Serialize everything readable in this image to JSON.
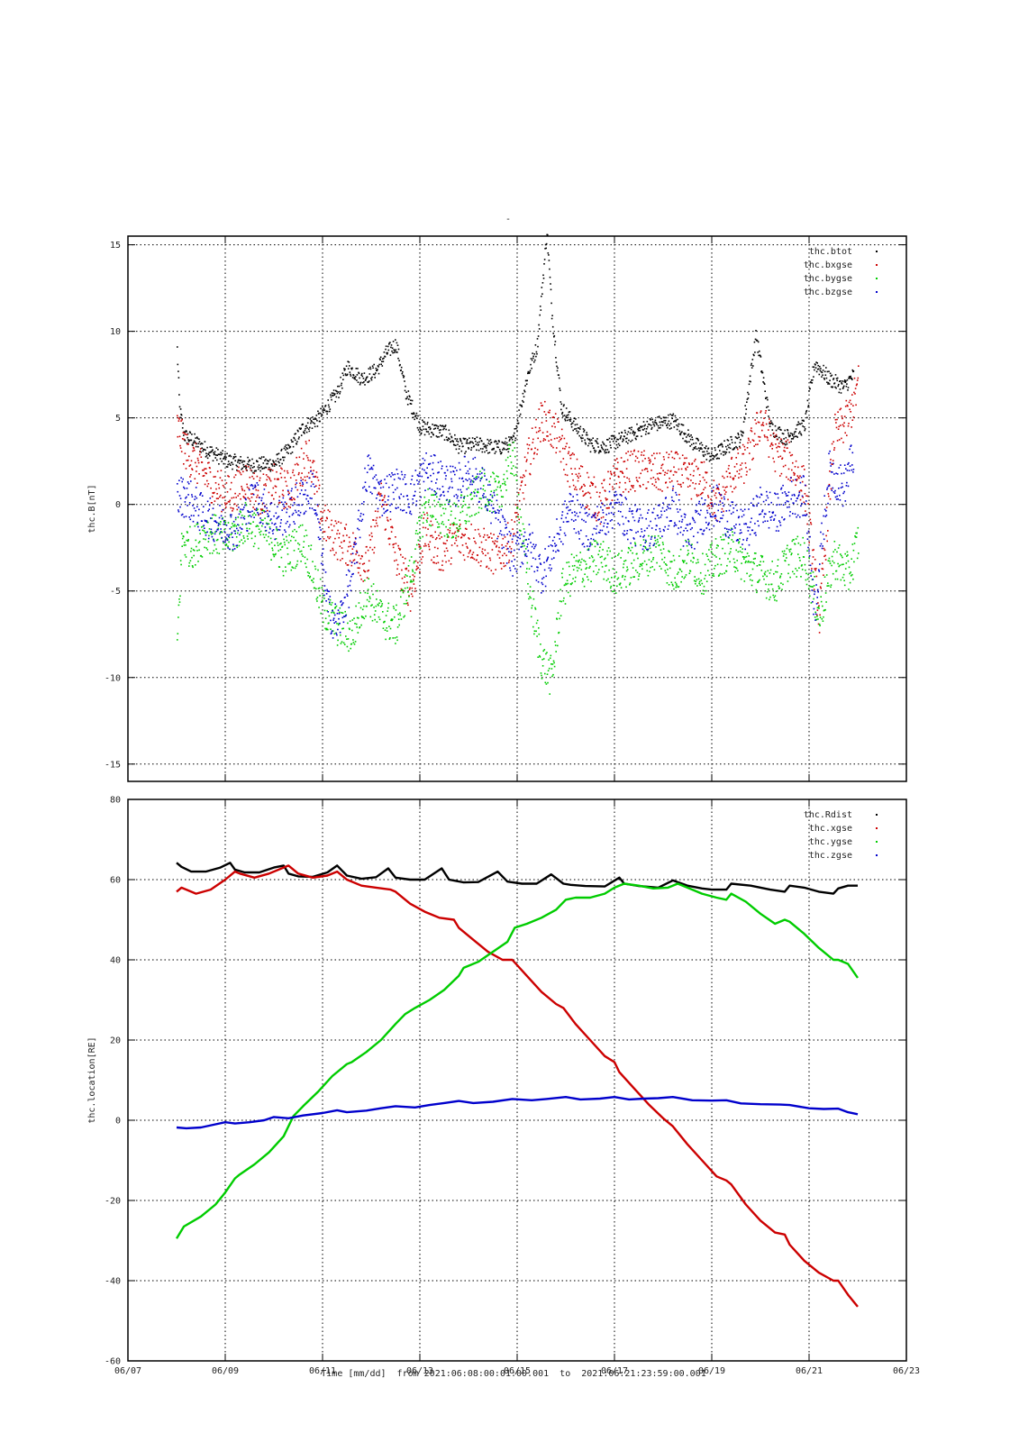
{
  "figure_title": "-",
  "x_axis": {
    "title": "Time [mm/dd]  from 2021:06:08:00:01:00.001  to  2021:06:21:23:59:00.001",
    "tick_labels": [
      "06/07",
      "06/09",
      "06/11",
      "06/13",
      "06/15",
      "06/17",
      "06/19",
      "06/21",
      "06/23"
    ],
    "tick_days": [
      7,
      9,
      11,
      13,
      15,
      17,
      19,
      21,
      23
    ],
    "range_days": [
      7,
      23
    ]
  },
  "chart_data": [
    {
      "type": "scatter",
      "ylabel": "thc.B[nT]",
      "ylim": [
        -16,
        15.5
      ],
      "yticks": [
        15,
        10,
        5,
        0,
        -5,
        -10,
        -15
      ],
      "legend_position": "top-right",
      "grid": true,
      "series": [
        {
          "name": "thc.btot",
          "color": "#000000",
          "x": [
            8.0,
            8.05,
            8.15,
            8.3,
            8.6,
            9.0,
            9.5,
            10.0,
            10.3,
            10.6,
            10.9,
            11.3,
            11.5,
            11.8,
            12.1,
            12.3,
            12.5,
            12.7,
            13.0,
            13.5,
            13.8,
            14.2,
            14.6,
            14.9,
            15.2,
            15.4,
            15.6,
            15.7,
            15.9,
            16.2,
            16.5,
            16.8,
            17.2,
            17.7,
            18.2,
            18.6,
            19.0,
            19.3,
            19.6,
            19.9,
            20.2,
            20.5,
            20.9,
            21.1,
            21.4,
            21.7,
            21.9
          ],
          "y": [
            9.0,
            5.5,
            4.0,
            3.8,
            3.2,
            2.6,
            2.3,
            2.4,
            3.2,
            4.5,
            5.0,
            6.5,
            8.0,
            7.3,
            7.8,
            8.8,
            9.3,
            6.5,
            4.5,
            4.2,
            3.4,
            3.5,
            3.3,
            3.6,
            7.5,
            9.2,
            15.8,
            11.2,
            5.6,
            4.5,
            3.5,
            3.4,
            3.9,
            4.6,
            4.9,
            3.6,
            2.8,
            3.4,
            3.9,
            9.8,
            4.5,
            3.9,
            4.6,
            8.2,
            7.3,
            6.8,
            7.5
          ]
        },
        {
          "name": "thc.bxgse",
          "color": "#cc0000",
          "x": [
            8.0,
            8.2,
            8.5,
            8.8,
            9.1,
            9.4,
            9.7,
            10.0,
            10.3,
            10.7,
            11.0,
            11.3,
            11.6,
            11.9,
            12.2,
            12.5,
            12.8,
            13.1,
            13.4,
            13.7,
            14.0,
            14.3,
            14.6,
            14.9,
            15.2,
            15.5,
            15.8,
            16.1,
            16.4,
            16.7,
            17.0,
            17.3,
            17.6,
            17.9,
            18.2,
            18.5,
            18.8,
            19.1,
            19.4,
            19.7,
            20.0,
            20.3,
            20.6,
            20.9,
            21.2,
            21.5,
            21.8,
            22.0
          ],
          "y": [
            4.5,
            3.0,
            2.0,
            1.0,
            0.5,
            1.5,
            0.5,
            1.2,
            0.8,
            3.0,
            -1.0,
            -2.0,
            -2.5,
            -3.5,
            0.5,
            -3.0,
            -5.0,
            -1.5,
            -2.8,
            -2.0,
            -2.0,
            -2.5,
            -3.0,
            -1.8,
            2.5,
            5.0,
            4.0,
            2.0,
            1.0,
            0.0,
            1.5,
            2.0,
            2.0,
            1.8,
            2.0,
            1.5,
            1.5,
            0.0,
            1.8,
            2.5,
            5.0,
            3.0,
            2.5,
            1.0,
            -6.5,
            4.0,
            5.0,
            7.0
          ]
        },
        {
          "name": "thc.bygse",
          "color": "#00cc00",
          "x": [
            8.0,
            8.1,
            8.3,
            8.6,
            9.0,
            9.4,
            9.8,
            10.2,
            10.6,
            11.0,
            11.3,
            11.6,
            11.9,
            12.2,
            12.5,
            12.8,
            13.1,
            13.4,
            13.7,
            14.0,
            14.3,
            14.6,
            14.9,
            15.1,
            15.3,
            15.5,
            15.7,
            15.9,
            16.1,
            16.4,
            16.7,
            17.0,
            17.3,
            17.6,
            17.9,
            18.2,
            18.5,
            18.8,
            19.1,
            19.4,
            19.7,
            20.0,
            20.3,
            20.6,
            20.9,
            21.2,
            21.5,
            21.8,
            22.0
          ],
          "y": [
            -8.0,
            -2.0,
            -2.5,
            -1.5,
            -2.0,
            -1.0,
            -1.5,
            -3.0,
            -2.0,
            -6.0,
            -7.0,
            -7.5,
            -5.0,
            -6.5,
            -7.0,
            -4.0,
            0.0,
            -0.5,
            -1.0,
            0.0,
            1.0,
            0.5,
            3.0,
            -2.0,
            -6.0,
            -9.0,
            -10.0,
            -5.0,
            -4.0,
            -3.5,
            -3.0,
            -4.0,
            -3.5,
            -3.0,
            -2.5,
            -4.0,
            -3.0,
            -4.0,
            -3.0,
            -2.5,
            -3.5,
            -4.0,
            -4.5,
            -3.0,
            -3.0,
            -6.5,
            -3.0,
            -4.0,
            -2.0
          ]
        },
        {
          "name": "thc.bzgse",
          "color": "#0000cc",
          "x": [
            8.0,
            8.2,
            8.5,
            8.8,
            9.2,
            9.6,
            10.0,
            10.4,
            10.8,
            11.1,
            11.3,
            11.6,
            11.9,
            12.2,
            12.5,
            12.8,
            13.1,
            13.4,
            13.7,
            14.0,
            14.3,
            14.6,
            14.9,
            15.2,
            15.5,
            15.8,
            16.1,
            16.4,
            16.7,
            17.0,
            17.3,
            17.6,
            17.9,
            18.2,
            18.5,
            18.8,
            19.1,
            19.4,
            19.7,
            20.0,
            20.3,
            20.6,
            20.9,
            21.1,
            21.4,
            21.7,
            21.9
          ],
          "y": [
            0.5,
            0.5,
            -0.5,
            -1.0,
            -1.5,
            0.5,
            -1.0,
            0.0,
            1.0,
            -6.0,
            -7.0,
            -4.0,
            2.0,
            0.5,
            1.0,
            0.5,
            2.0,
            1.5,
            1.0,
            2.0,
            1.0,
            -1.0,
            -3.0,
            -2.0,
            -4.0,
            -2.0,
            0.0,
            -1.5,
            -1.0,
            0.0,
            -1.0,
            -1.5,
            -1.0,
            0.0,
            -2.0,
            -0.5,
            0.0,
            -1.0,
            -1.5,
            0.0,
            -0.5,
            0.5,
            0.5,
            -6.0,
            2.0,
            1.0,
            3.0
          ]
        }
      ]
    },
    {
      "type": "line",
      "ylabel": "thc.location[RE]",
      "ylim": [
        -60,
        80
      ],
      "yticks": [
        80,
        60,
        40,
        20,
        0,
        -20,
        -40,
        -60
      ],
      "legend_position": "top-right",
      "grid": true,
      "series": [
        {
          "name": "thc.Rdist",
          "color": "#000000",
          "x": [
            8.0,
            8.1,
            8.3,
            8.6,
            8.9,
            9.1,
            9.2,
            9.4,
            9.7,
            10.0,
            10.2,
            10.3,
            10.5,
            10.8,
            11.1,
            11.3,
            11.5,
            11.8,
            12.1,
            12.35,
            12.5,
            12.8,
            13.1,
            13.45,
            13.6,
            13.9,
            14.2,
            14.6,
            14.8,
            15.1,
            15.4,
            15.7,
            15.95,
            16.1,
            16.4,
            16.8,
            17.1,
            17.2,
            17.5,
            17.9,
            18.2,
            18.5,
            18.8,
            19.0,
            19.3,
            19.4,
            19.8,
            20.2,
            20.5,
            20.6,
            20.9,
            21.2,
            21.5,
            21.6,
            21.8,
            22.0
          ],
          "y": [
            64.2,
            63.2,
            62.0,
            62.0,
            63.0,
            64.2,
            62.5,
            61.8,
            61.8,
            63.0,
            63.5,
            61.5,
            60.8,
            60.7,
            61.8,
            63.5,
            61.0,
            60.2,
            60.6,
            62.8,
            60.5,
            60.0,
            60.0,
            62.8,
            60.0,
            59.3,
            59.4,
            62.0,
            59.5,
            59.0,
            59.0,
            61.3,
            59.0,
            58.7,
            58.4,
            58.3,
            60.5,
            59.0,
            58.4,
            58.0,
            59.8,
            58.5,
            57.8,
            57.5,
            57.5,
            59.0,
            58.5,
            57.5,
            57.0,
            58.5,
            58.0,
            57.0,
            56.5,
            57.8,
            58.5,
            58.5
          ]
        },
        {
          "name": "thc.xgse",
          "color": "#cc0000",
          "x": [
            8.0,
            8.1,
            8.4,
            8.7,
            9.0,
            9.2,
            9.3,
            9.6,
            9.9,
            10.2,
            10.3,
            10.5,
            10.8,
            11.1,
            11.3,
            11.5,
            11.8,
            12.1,
            12.4,
            12.5,
            12.8,
            13.1,
            13.4,
            13.7,
            13.8,
            14.1,
            14.4,
            14.7,
            14.9,
            15.2,
            15.5,
            15.8,
            15.95,
            16.2,
            16.5,
            16.8,
            17.0,
            17.1,
            17.4,
            17.7,
            18.0,
            18.2,
            18.5,
            18.8,
            19.1,
            19.3,
            19.4,
            19.7,
            20.0,
            20.3,
            20.5,
            20.6,
            20.9,
            21.2,
            21.5,
            21.6,
            21.8,
            22.0
          ],
          "y": [
            57.0,
            58.0,
            56.5,
            57.5,
            60.0,
            62.0,
            61.5,
            60.5,
            61.5,
            63.0,
            63.5,
            61.5,
            60.5,
            61.0,
            62.0,
            60.0,
            58.5,
            58.0,
            57.5,
            57.0,
            54.0,
            52.0,
            50.5,
            50.0,
            48.0,
            45.0,
            42.0,
            40.0,
            40.0,
            36.0,
            32.0,
            29.0,
            28.0,
            24.0,
            20.0,
            16.0,
            14.5,
            12.0,
            8.0,
            4.0,
            0.5,
            -1.5,
            -6.0,
            -10.0,
            -14.0,
            -15.0,
            -16.0,
            -21.0,
            -25.0,
            -28.0,
            -28.5,
            -31.0,
            -35.0,
            -38.0,
            -40.0,
            -40.0,
            -43.5,
            -46.5
          ]
        },
        {
          "name": "thc.ygse",
          "color": "#00cc00",
          "x": [
            8.0,
            8.15,
            8.5,
            8.8,
            9.0,
            9.2,
            9.3,
            9.6,
            9.9,
            10.2,
            10.4,
            10.6,
            10.9,
            11.2,
            11.5,
            11.6,
            11.9,
            12.2,
            12.5,
            12.7,
            12.9,
            13.2,
            13.5,
            13.8,
            13.9,
            14.2,
            14.5,
            14.8,
            14.95,
            15.2,
            15.5,
            15.8,
            16.0,
            16.2,
            16.5,
            16.8,
            17.0,
            17.2,
            17.5,
            17.8,
            18.1,
            18.3,
            18.5,
            18.8,
            19.1,
            19.3,
            19.4,
            19.7,
            20.0,
            20.3,
            20.5,
            20.6,
            20.9,
            21.2,
            21.5,
            21.6,
            21.8,
            22.0
          ],
          "y": [
            -29.5,
            -26.5,
            -24.0,
            -21.0,
            -18.0,
            -14.5,
            -13.5,
            -11.0,
            -8.0,
            -4.0,
            1.0,
            3.5,
            7.0,
            11.0,
            14.0,
            14.5,
            17.0,
            20.0,
            24.0,
            26.5,
            28.0,
            30.0,
            32.5,
            36.0,
            38.0,
            39.5,
            42.0,
            44.5,
            48.0,
            49.0,
            50.5,
            52.5,
            55.0,
            55.5,
            55.5,
            56.5,
            58.0,
            59.0,
            58.5,
            57.8,
            58.0,
            59.0,
            58.0,
            56.5,
            55.5,
            55.0,
            56.5,
            54.5,
            51.5,
            49.0,
            50.0,
            49.5,
            46.5,
            43.0,
            40.0,
            40.0,
            39.0,
            35.5
          ]
        },
        {
          "name": "thc.zgse",
          "color": "#0000cc",
          "x": [
            8.0,
            8.2,
            8.5,
            8.8,
            9.0,
            9.2,
            9.5,
            9.8,
            10.0,
            10.3,
            10.6,
            11.0,
            11.3,
            11.5,
            11.9,
            12.2,
            12.5,
            12.9,
            13.2,
            13.5,
            13.8,
            14.1,
            14.5,
            14.9,
            15.3,
            15.6,
            16.0,
            16.3,
            16.7,
            17.0,
            17.3,
            17.6,
            17.9,
            18.2,
            18.6,
            19.0,
            19.3,
            19.6,
            20.0,
            20.4,
            20.6,
            21.0,
            21.3,
            21.6,
            21.8,
            22.0
          ],
          "y": [
            -1.8,
            -2.0,
            -1.8,
            -1.0,
            -0.5,
            -0.8,
            -0.5,
            0.0,
            0.8,
            0.5,
            1.2,
            1.8,
            2.5,
            2.0,
            2.4,
            3.0,
            3.5,
            3.2,
            3.8,
            4.3,
            4.8,
            4.3,
            4.6,
            5.3,
            5.0,
            5.3,
            5.8,
            5.2,
            5.4,
            5.8,
            5.2,
            5.4,
            5.5,
            5.8,
            5.0,
            4.9,
            5.0,
            4.2,
            4.0,
            3.9,
            3.8,
            3.0,
            2.8,
            2.9,
            2.0,
            1.5
          ]
        }
      ]
    }
  ]
}
